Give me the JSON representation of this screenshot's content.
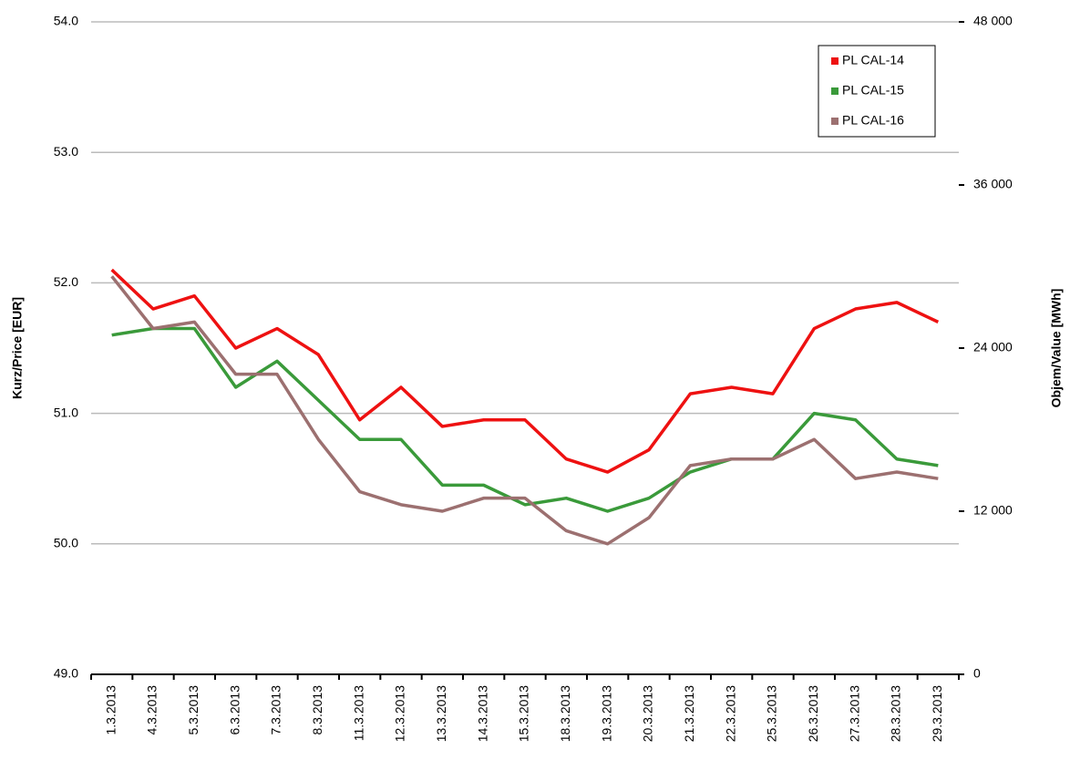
{
  "chart_data": {
    "type": "line",
    "y_label": "Kurz/Price [EUR]",
    "y2_label": "Objem/Value [MWh]",
    "categories": [
      "1.3.2013",
      "4.3.2013",
      "5.3.2013",
      "6.3.2013",
      "7.3.2013",
      "8.3.2013",
      "11.3.2013",
      "12.3.2013",
      "13.3.2013",
      "14.3.2013",
      "15.3.2013",
      "18.3.2013",
      "19.3.2013",
      "20.3.2013",
      "21.3.2013",
      "22.3.2013",
      "25.3.2013",
      "26.3.2013",
      "27.3.2013",
      "28.3.2013",
      "29.3.2013"
    ],
    "series": [
      {
        "name": "PL CAL-14",
        "color": "#ee1111",
        "values": [
          52.1,
          51.8,
          51.9,
          51.5,
          51.65,
          51.45,
          50.95,
          51.2,
          50.9,
          50.95,
          50.95,
          50.65,
          50.55,
          50.72,
          51.15,
          51.2,
          51.15,
          51.65,
          51.8,
          51.85,
          51.7
        ]
      },
      {
        "name": "PL CAL-15",
        "color": "#3a9a3a",
        "values": [
          51.6,
          51.65,
          51.65,
          51.2,
          51.4,
          51.1,
          50.8,
          50.8,
          50.45,
          50.45,
          50.3,
          50.35,
          50.25,
          50.35,
          50.55,
          50.65,
          50.65,
          51.0,
          50.95,
          50.65,
          50.6
        ]
      },
      {
        "name": "PL CAL-16",
        "color": "#9c7070",
        "values": [
          52.05,
          51.65,
          51.7,
          51.3,
          51.3,
          50.8,
          50.4,
          50.3,
          50.25,
          50.35,
          50.35,
          50.1,
          50.0,
          50.2,
          50.6,
          50.65,
          50.65,
          50.8,
          50.5,
          50.55,
          50.5
        ]
      }
    ],
    "ylim": [
      49,
      54
    ],
    "yticks": [
      {
        "value": 49,
        "label": "49.0"
      },
      {
        "value": 50,
        "label": "50.0"
      },
      {
        "value": 51,
        "label": "51.0"
      },
      {
        "value": 52,
        "label": "52.0"
      },
      {
        "value": 53,
        "label": "53.0"
      },
      {
        "value": 54,
        "label": "54.0"
      }
    ],
    "y2lim": [
      0,
      48000
    ],
    "y2ticks": [
      0,
      {
        "value": 12000,
        "label": "12 000"
      },
      {
        "value": 24000,
        "label": "24 000"
      },
      {
        "value": 36000,
        "label": "36 000"
      },
      {
        "value": 48000,
        "label": "48 000"
      }
    ],
    "grid": true,
    "legend": "top-right"
  }
}
